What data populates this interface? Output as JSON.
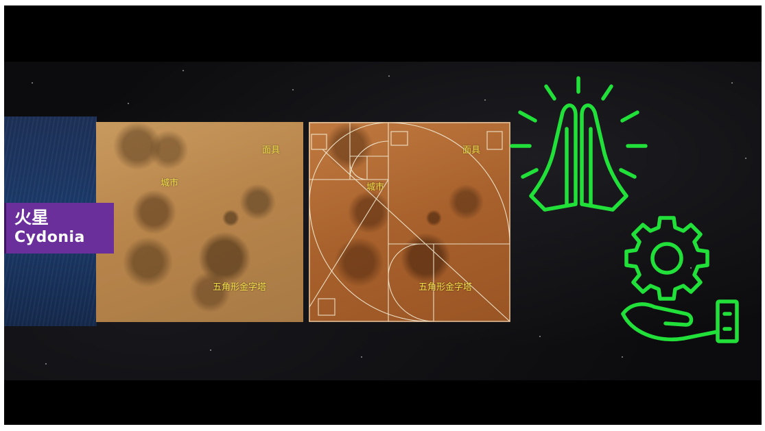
{
  "region_tag": {
    "chinese": "火星",
    "latin": "Cydonia"
  },
  "left_panel": {
    "labels": {
      "mask": "面具",
      "city": "城市",
      "pyramid": "五角形金字塔"
    }
  },
  "right_panel": {
    "labels": {
      "mask": "面具",
      "city": "城市",
      "pyramid": "五角形金字塔"
    }
  },
  "icons": [
    {
      "name": "praying-hands-icon",
      "color": "#22e03a"
    },
    {
      "name": "gear-in-hand-icon",
      "color": "#22e03a"
    }
  ],
  "colors": {
    "label_yellow": "#f3e04a",
    "icon_green": "#22e03a",
    "tag_purple": "#6a2f9a"
  }
}
